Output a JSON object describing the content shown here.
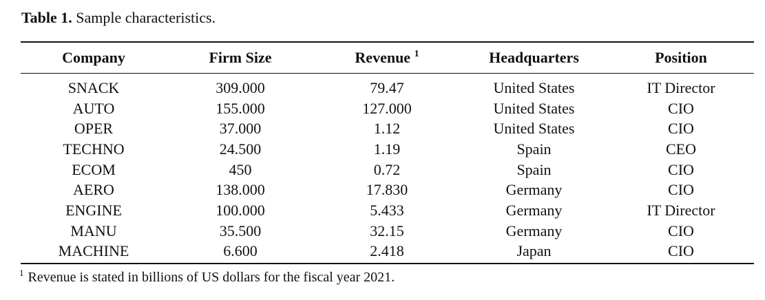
{
  "caption": {
    "label": "Table 1.",
    "text": "Sample characteristics."
  },
  "table": {
    "headers": [
      "Company",
      "Firm Size",
      "Revenue",
      "Headquarters",
      "Position"
    ],
    "revenue_footnote_marker": "1",
    "rows": [
      [
        "SNACK",
        "309.000",
        "79.47",
        "United States",
        "IT Director"
      ],
      [
        "AUTO",
        "155.000",
        "127.000",
        "United States",
        "CIO"
      ],
      [
        "OPER",
        "37.000",
        "1.12",
        "United States",
        "CIO"
      ],
      [
        "TECHNO",
        "24.500",
        "1.19",
        "Spain",
        "CEO"
      ],
      [
        "ECOM",
        "450",
        "0.72",
        "Spain",
        "CIO"
      ],
      [
        "AERO",
        "138.000",
        "17.830",
        "Germany",
        "CIO"
      ],
      [
        "ENGINE",
        "100.000",
        "5.433",
        "Germany",
        "IT Director"
      ],
      [
        "MANU",
        "35.500",
        "32.15",
        "Germany",
        "CIO"
      ],
      [
        "MACHINE",
        "6.600",
        "2.418",
        "Japan",
        "CIO"
      ]
    ]
  },
  "footnote": {
    "marker": "1",
    "text": "Revenue is stated in billions of US dollars for the fiscal year 2021."
  }
}
